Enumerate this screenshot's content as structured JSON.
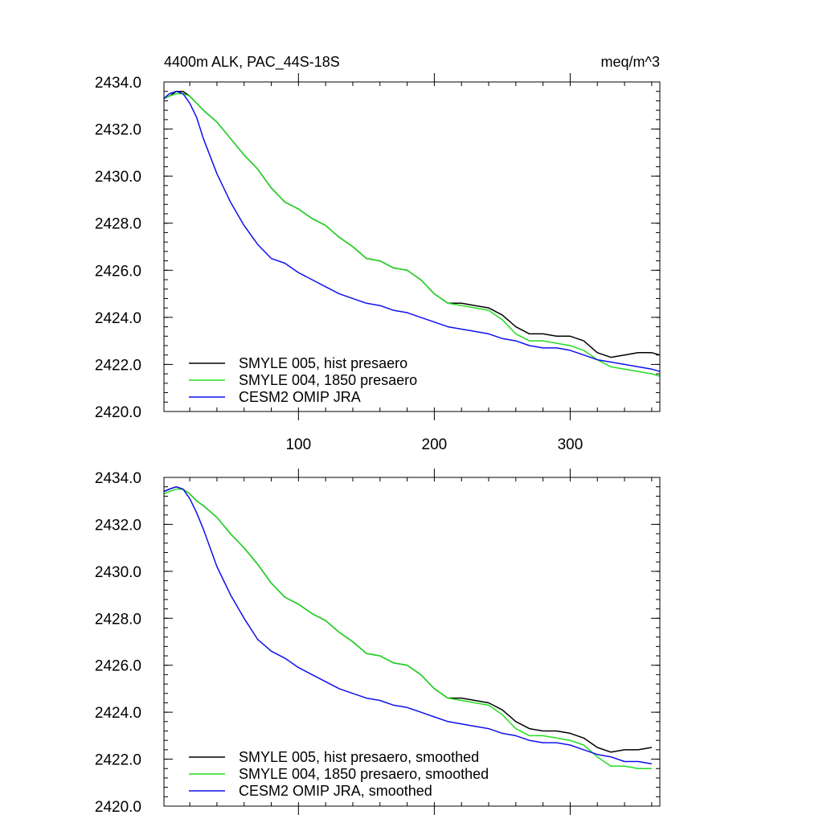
{
  "figure": {
    "title_left": "4400m ALK, PAC_44S-18S",
    "title_right": "meq/m^3"
  },
  "chart_data": [
    {
      "type": "line",
      "title": "4400m ALK, PAC_44S-18S",
      "units": "meq/m^3",
      "xlim": [
        1,
        366
      ],
      "ylim": [
        2420,
        2434
      ],
      "x_ticks": [
        100,
        200,
        300
      ],
      "x_tick_labels": [
        "100",
        "200",
        "300"
      ],
      "y_ticks": [
        2420,
        2422,
        2424,
        2426,
        2428,
        2430,
        2432,
        2434
      ],
      "y_tick_labels": [
        "2420.0",
        "2422.0",
        "2424.0",
        "2426.0",
        "2428.0",
        "2430.0",
        "2432.0",
        "2434.0"
      ],
      "legend_position": "bottom-left",
      "series": [
        {
          "name": "SMYLE 005, hist presaero",
          "color": "#000000",
          "x": [
            1,
            5,
            10,
            15,
            20,
            25,
            30,
            40,
            50,
            60,
            70,
            80,
            90,
            100,
            110,
            120,
            130,
            140,
            150,
            160,
            170,
            180,
            190,
            200,
            205,
            210,
            220,
            230,
            240,
            250,
            260,
            270,
            280,
            290,
            300,
            310,
            320,
            330,
            340,
            350,
            360,
            366
          ],
          "y": [
            2433.3,
            2433.4,
            2433.6,
            2433.6,
            2433.4,
            2433.1,
            2432.8,
            2432.3,
            2431.6,
            2430.9,
            2430.3,
            2429.5,
            2428.9,
            2428.6,
            2428.2,
            2427.9,
            2427.4,
            2427.0,
            2426.5,
            2426.4,
            2426.1,
            2426.0,
            2425.6,
            2425.0,
            2424.8,
            2424.6,
            2424.6,
            2424.5,
            2424.4,
            2424.1,
            2423.6,
            2423.3,
            2423.3,
            2423.2,
            2423.2,
            2423.0,
            2422.5,
            2422.3,
            2422.4,
            2422.5,
            2422.5,
            2422.4
          ]
        },
        {
          "name": "SMYLE 004, 1850 presaero",
          "color": "#22dd22",
          "x": [
            1,
            5,
            10,
            15,
            20,
            25,
            30,
            40,
            50,
            60,
            70,
            80,
            90,
            100,
            110,
            120,
            130,
            140,
            150,
            160,
            170,
            180,
            190,
            200,
            205,
            210,
            220,
            230,
            240,
            250,
            260,
            270,
            280,
            290,
            300,
            310,
            320,
            330,
            340,
            350,
            360,
            366
          ],
          "y": [
            2433.3,
            2433.4,
            2433.5,
            2433.5,
            2433.4,
            2433.1,
            2432.8,
            2432.3,
            2431.6,
            2430.9,
            2430.3,
            2429.5,
            2428.9,
            2428.6,
            2428.2,
            2427.9,
            2427.4,
            2427.0,
            2426.5,
            2426.4,
            2426.1,
            2426.0,
            2425.6,
            2425.0,
            2424.8,
            2424.6,
            2424.5,
            2424.4,
            2424.3,
            2423.9,
            2423.3,
            2423.0,
            2423.0,
            2422.9,
            2422.8,
            2422.6,
            2422.2,
            2421.9,
            2421.8,
            2421.7,
            2421.6,
            2421.5
          ]
        },
        {
          "name": "CESM2 OMIP JRA",
          "color": "#1010ee",
          "x": [
            1,
            5,
            10,
            15,
            20,
            25,
            30,
            40,
            50,
            60,
            70,
            80,
            90,
            100,
            110,
            120,
            130,
            140,
            150,
            160,
            170,
            180,
            190,
            200,
            210,
            220,
            230,
            240,
            250,
            260,
            270,
            280,
            290,
            300,
            310,
            320,
            330,
            340,
            350,
            360,
            366
          ],
          "y": [
            2433.3,
            2433.5,
            2433.6,
            2433.5,
            2433.1,
            2432.5,
            2431.6,
            2430.1,
            2428.9,
            2427.9,
            2427.1,
            2426.5,
            2426.3,
            2425.9,
            2425.6,
            2425.3,
            2425.0,
            2424.8,
            2424.6,
            2424.5,
            2424.3,
            2424.2,
            2424.0,
            2423.8,
            2423.6,
            2423.5,
            2423.4,
            2423.3,
            2423.1,
            2423.0,
            2422.8,
            2422.7,
            2422.7,
            2422.6,
            2422.4,
            2422.2,
            2422.1,
            2422.0,
            2421.9,
            2421.8,
            2421.7
          ]
        }
      ]
    },
    {
      "type": "line",
      "xlim": [
        1,
        366
      ],
      "ylim": [
        2420,
        2434
      ],
      "x_ticks": [
        100,
        200,
        300
      ],
      "x_tick_labels": [],
      "y_ticks": [
        2420,
        2422,
        2424,
        2426,
        2428,
        2430,
        2432,
        2434
      ],
      "y_tick_labels": [
        "2420.0",
        "2422.0",
        "2424.0",
        "2426.0",
        "2428.0",
        "2430.0",
        "2432.0",
        "2434.0"
      ],
      "legend_position": "bottom-left",
      "series": [
        {
          "name": "SMYLE 005, hist presaero, smoothed",
          "color": "#000000",
          "x": [
            1,
            5,
            10,
            15,
            20,
            25,
            30,
            40,
            50,
            60,
            70,
            80,
            90,
            100,
            110,
            120,
            130,
            140,
            150,
            160,
            170,
            180,
            190,
            200,
            205,
            210,
            220,
            230,
            240,
            250,
            260,
            270,
            280,
            290,
            300,
            310,
            320,
            330,
            340,
            350,
            360
          ],
          "y": [
            2433.4,
            2433.5,
            2433.6,
            2433.5,
            2433.3,
            2433.0,
            2432.8,
            2432.3,
            2431.6,
            2431.0,
            2430.3,
            2429.5,
            2428.9,
            2428.6,
            2428.2,
            2427.9,
            2427.4,
            2427.0,
            2426.5,
            2426.4,
            2426.1,
            2426.0,
            2425.6,
            2425.0,
            2424.8,
            2424.6,
            2424.6,
            2424.5,
            2424.4,
            2424.1,
            2423.6,
            2423.3,
            2423.2,
            2423.2,
            2423.1,
            2422.9,
            2422.5,
            2422.3,
            2422.4,
            2422.4,
            2422.5
          ]
        },
        {
          "name": "SMYLE 004, 1850 presaero, smoothed",
          "color": "#22dd22",
          "x": [
            1,
            5,
            10,
            15,
            20,
            25,
            30,
            40,
            50,
            60,
            70,
            80,
            90,
            100,
            110,
            120,
            130,
            140,
            150,
            160,
            170,
            180,
            190,
            200,
            205,
            210,
            220,
            230,
            240,
            250,
            260,
            270,
            280,
            290,
            300,
            310,
            320,
            330,
            340,
            350,
            360
          ],
          "y": [
            2433.3,
            2433.4,
            2433.5,
            2433.5,
            2433.3,
            2433.0,
            2432.8,
            2432.3,
            2431.6,
            2431.0,
            2430.3,
            2429.5,
            2428.9,
            2428.6,
            2428.2,
            2427.9,
            2427.4,
            2427.0,
            2426.5,
            2426.4,
            2426.1,
            2426.0,
            2425.6,
            2425.0,
            2424.8,
            2424.6,
            2424.5,
            2424.4,
            2424.3,
            2423.9,
            2423.3,
            2423.0,
            2423.0,
            2422.9,
            2422.8,
            2422.6,
            2422.1,
            2421.7,
            2421.7,
            2421.6,
            2421.6
          ]
        },
        {
          "name": "CESM2 OMIP JRA, smoothed",
          "color": "#1010ee",
          "x": [
            1,
            5,
            10,
            15,
            20,
            25,
            30,
            40,
            50,
            60,
            70,
            80,
            90,
            100,
            110,
            120,
            130,
            140,
            150,
            160,
            170,
            180,
            190,
            200,
            210,
            220,
            230,
            240,
            250,
            260,
            270,
            280,
            290,
            300,
            310,
            320,
            330,
            340,
            350,
            360
          ],
          "y": [
            2433.4,
            2433.5,
            2433.6,
            2433.5,
            2433.1,
            2432.5,
            2431.8,
            2430.2,
            2429.0,
            2428.0,
            2427.1,
            2426.6,
            2426.3,
            2425.9,
            2425.6,
            2425.3,
            2425.0,
            2424.8,
            2424.6,
            2424.5,
            2424.3,
            2424.2,
            2424.0,
            2423.8,
            2423.6,
            2423.5,
            2423.4,
            2423.3,
            2423.1,
            2423.0,
            2422.8,
            2422.7,
            2422.7,
            2422.6,
            2422.4,
            2422.2,
            2422.1,
            2421.9,
            2421.9,
            2421.8
          ]
        }
      ]
    }
  ]
}
